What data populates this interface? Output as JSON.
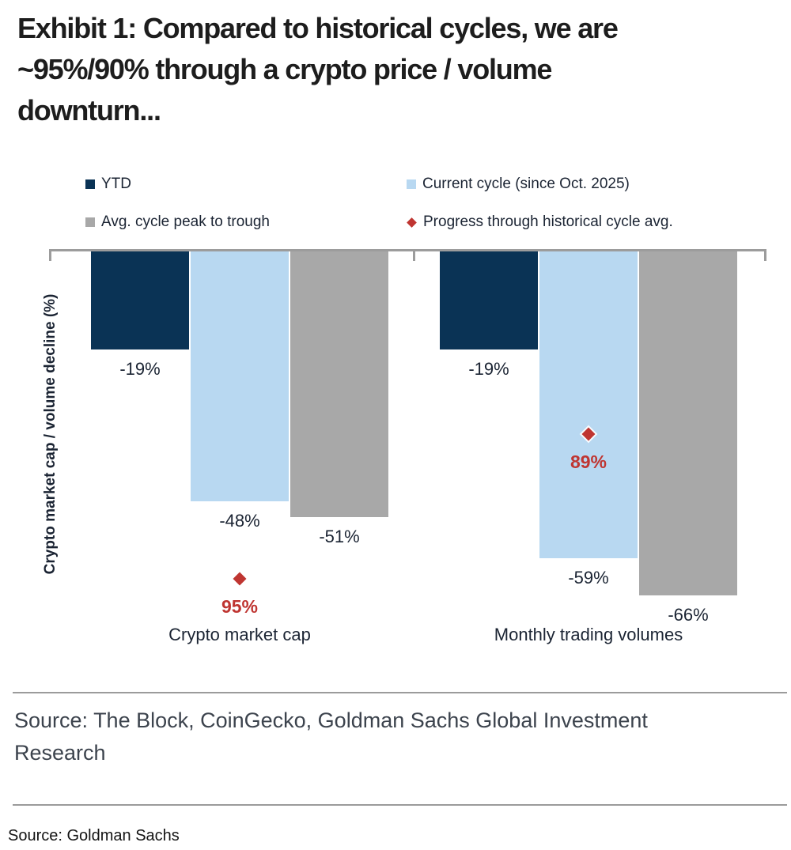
{
  "title_lines": [
    "Exhibit 1: Compared to historical cycles, we are",
    "~95%/90% through a crypto price / volume",
    "downturn..."
  ],
  "chart_data": {
    "type": "bar",
    "orientation": "columns-extending-downward-from-zero",
    "categories": [
      "Crypto market cap",
      "Monthly trading volumes"
    ],
    "series": [
      {
        "name": "YTD",
        "color": "#0a3355",
        "values": [
          -19,
          -19
        ]
      },
      {
        "name": "Current cycle (since Oct. 2025)",
        "color": "#b8d8f1",
        "values": [
          -48,
          -59
        ]
      },
      {
        "name": "Avg. cycle peak to trough",
        "color": "#a8a8a8",
        "values": [
          -51,
          -66
        ]
      }
    ],
    "point_series": {
      "name": "Progress through historical cycle avg.",
      "marker": "diamond",
      "color": "#bf3531",
      "values": [
        95,
        89
      ]
    },
    "value_suffix": "%",
    "ylabel": "Crypto market cap / volume decline (%)",
    "axis_color": "#9c9c9c",
    "legend_position": "top",
    "grid": false
  },
  "footer": {
    "source_text": "Source: The Block, CoinGecko, Goldman Sachs Global Investment Research",
    "caption": "Source: Goldman Sachs"
  }
}
